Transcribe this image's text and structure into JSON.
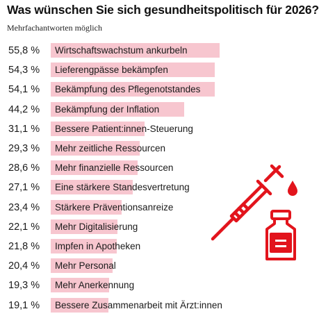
{
  "header": {
    "title": "Was wünschen Sie sich gesundheitspolitisch für 2026?",
    "subtitle": "Mehrfachantworten möglich"
  },
  "colors": {
    "bar": "#f7c6cf",
    "accent": "#e2141c"
  },
  "icons": [
    "syringe-icon",
    "medicine-vial-icon"
  ],
  "chart_data": {
    "type": "bar",
    "orientation": "horizontal",
    "unit": "%",
    "categories": [
      "Wirtschaftswachstum ankurbeln",
      "Lieferengpässe bekämpfen",
      "Bekämpfung des Pflegenotstandes",
      "Bekämpfung der Inflation",
      "Bessere Patient:innen-Steuerung",
      "Mehr zeitliche Ressourcen",
      "Mehr finanzielle Ressourcen",
      "Eine stärkere Standesvertretung",
      "Stärkere Präventionsanreize",
      "Mehr Digitalisierung",
      "Impfen in Apotheken",
      "Mehr Personal",
      "Mehr Anerkennung",
      "Bessere Zusammenarbeit mit Ärzt:innen"
    ],
    "values": [
      55.8,
      54.3,
      54.1,
      44.2,
      31.1,
      29.3,
      28.6,
      27.1,
      23.4,
      22.1,
      21.8,
      20.4,
      19.3,
      19.1
    ],
    "value_labels": [
      "55,8 %",
      "54,3 %",
      "54,1 %",
      "44,2 %",
      "31,1 %",
      "29,3 %",
      "28,6 %",
      "27,1 %",
      "23,4 %",
      "22,1 %",
      "21,8 %",
      "20,4 %",
      "19,3 %",
      "19,1 %"
    ],
    "xlim": [
      0,
      55.8
    ],
    "grid": false,
    "legend": "none"
  }
}
